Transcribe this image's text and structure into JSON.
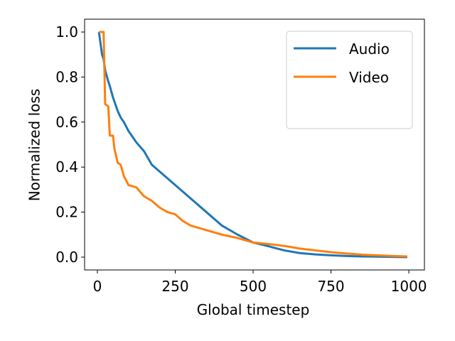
{
  "chart_data": {
    "type": "line",
    "xlabel": "Global timestep",
    "ylabel": "Normalized loss",
    "x": [
      5,
      15,
      20,
      25,
      35,
      40,
      50,
      55,
      65,
      75,
      85,
      100,
      125,
      150,
      175,
      200,
      225,
      250,
      275,
      300,
      350,
      400,
      450,
      500,
      550,
      600,
      650,
      700,
      750,
      800,
      850,
      900,
      950,
      995
    ],
    "series": [
      {
        "name": "Audio",
        "color": "#1f77b4",
        "values": [
          1.0,
          0.9,
          0.88,
          0.83,
          0.78,
          0.76,
          0.71,
          0.69,
          0.65,
          0.62,
          0.6,
          0.56,
          0.51,
          0.47,
          0.41,
          0.38,
          0.35,
          0.32,
          0.29,
          0.26,
          0.2,
          0.14,
          0.1,
          0.065,
          0.048,
          0.03,
          0.018,
          0.012,
          0.008,
          0.005,
          0.003,
          0.002,
          0.001,
          0.0
        ]
      },
      {
        "name": "Video",
        "color": "#ff7f0e",
        "values": [
          1.0,
          1.0,
          1.0,
          0.68,
          0.67,
          0.54,
          0.54,
          0.48,
          0.42,
          0.41,
          0.36,
          0.32,
          0.31,
          0.27,
          0.25,
          0.22,
          0.2,
          0.19,
          0.16,
          0.14,
          0.12,
          0.1,
          0.085,
          0.065,
          0.058,
          0.05,
          0.038,
          0.03,
          0.022,
          0.016,
          0.011,
          0.008,
          0.005,
          0.003
        ]
      }
    ],
    "xlim": [
      -41,
      1050
    ],
    "ylim": [
      -0.057,
      1.057
    ],
    "xticks": [
      0,
      250,
      500,
      750,
      1000
    ],
    "yticks": [
      {
        "value": 0,
        "label": "0.0"
      },
      {
        "value": 0.2,
        "label": "0.2"
      },
      {
        "value": 0.4,
        "label": "0.4"
      },
      {
        "value": 0.6,
        "label": "0.6"
      },
      {
        "value": 0.8,
        "label": "0.8"
      },
      {
        "value": 1,
        "label": "1.0"
      }
    ],
    "grid": false,
    "legend": "upper right"
  }
}
